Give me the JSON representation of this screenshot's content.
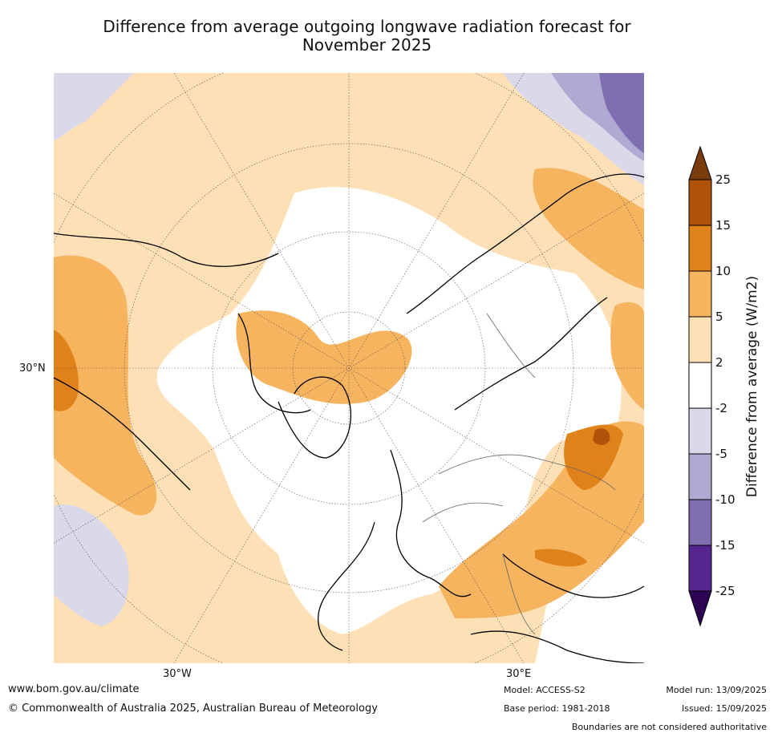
{
  "title_line1": "Difference from average outgoing longwave radiation forecast for",
  "title_line2": "November 2025",
  "map_labels": {
    "lat30n": "30°N",
    "lon30w": "30°W",
    "lon30e": "30°E"
  },
  "colorbar": {
    "title": "Difference from average (W/m2)",
    "ticks": [
      "25",
      "15",
      "10",
      "5",
      "2",
      "-2",
      "-5",
      "-10",
      "-15",
      "-25"
    ],
    "colors": [
      "#7a3c0c",
      "#b1520a",
      "#e0821a",
      "#f7b45f",
      "#fde0b5",
      "#ffffff",
      "#d9d9ea",
      "#b0a9d2",
      "#7f6fb0",
      "#56258f",
      "#2d0454"
    ]
  },
  "footer": {
    "url": "www.bom.gov.au/climate",
    "copyright": "© Commonwealth of Australia 2025, Australian Bureau of Meteorology",
    "model": "Model: ACCESS-S2",
    "base_period": "Base period: 1981-2018",
    "model_run": "Model run: 13/09/2025",
    "issued": "Issued: 15/09/2025",
    "disclaimer": "Boundaries are not considered authoritative"
  }
}
